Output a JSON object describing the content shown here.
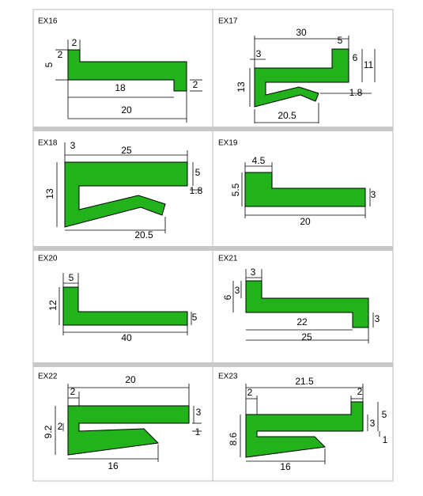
{
  "panels": [
    {
      "label": "EX16",
      "dims": [
        "2",
        "2",
        "5",
        "18",
        "2",
        "20"
      ]
    },
    {
      "label": "EX17",
      "dims": [
        "30",
        "5",
        "3",
        "6",
        "11",
        "13",
        "1.8",
        "20.5"
      ]
    },
    {
      "label": "EX18",
      "dims": [
        "3",
        "25",
        "5",
        "1.8",
        "13",
        "20.5"
      ]
    },
    {
      "label": "EX19",
      "dims": [
        "4.5",
        "5.5",
        "3",
        "20"
      ]
    },
    {
      "label": "EX20",
      "dims": [
        "5",
        "12",
        "5",
        "40"
      ]
    },
    {
      "label": "EX21",
      "dims": [
        "3",
        "3",
        "6",
        "3",
        "22",
        "25"
      ]
    },
    {
      "label": "EX22",
      "dims": [
        "20",
        "2",
        "3",
        "2",
        "9.2",
        "1",
        "16"
      ]
    },
    {
      "label": "EX23",
      "dims": [
        "21.5",
        "2",
        "2",
        "5",
        "3",
        "8.6",
        "1",
        "16"
      ]
    }
  ]
}
